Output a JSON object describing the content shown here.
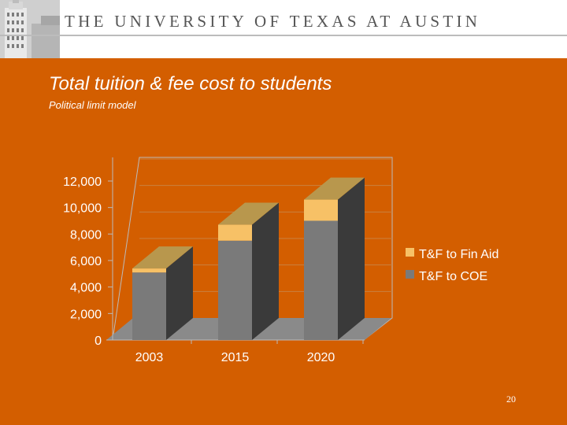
{
  "header": {
    "institution": "THE UNIVERSITY OF TEXAS AT AUSTIN"
  },
  "slide": {
    "title": "Total tuition &  fee cost to students",
    "subtitle": "Political limit model",
    "page_number": "20"
  },
  "colors": {
    "background": "#d35e00",
    "coe_front": "#7a7a7a",
    "coe_side": "#3a3a3a",
    "coe_top": "#b8974d",
    "finaid_front": "#f7c166",
    "finaid_top": "#b8974d",
    "floor": "#8a8a8a"
  },
  "chart_data": {
    "type": "bar",
    "stacked": true,
    "three_d": true,
    "categories": [
      "2003",
      "2015",
      "2020"
    ],
    "series": [
      {
        "name": "T&F to COE",
        "values": [
          5100,
          7500,
          9000
        ]
      },
      {
        "name": "T&F to Fin Aid",
        "values": [
          300,
          1200,
          1600
        ]
      }
    ],
    "y_ticks": [
      "0",
      "2,000",
      "4,000",
      "6,000",
      "8,000",
      "10,000",
      "12,000"
    ],
    "ylim": [
      0,
      12000
    ],
    "legend_position": "right"
  }
}
